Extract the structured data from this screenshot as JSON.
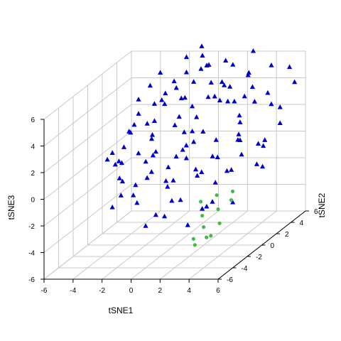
{
  "chart_data": {
    "type": "scatter",
    "projection": "3d-perspective",
    "title": "",
    "xlabel": "tSNE1",
    "ylabel": "tSNE2",
    "zlabel": "tSNE3",
    "x_ticks": [
      "-6",
      "-4",
      "-2",
      "0",
      "2",
      "4",
      "6"
    ],
    "y_ticks": [
      "-6",
      "-4",
      "-2",
      "0",
      "2",
      "4",
      "6"
    ],
    "z_ticks": [
      "-6",
      "-4",
      "-2",
      "0",
      "2",
      "4",
      "6"
    ],
    "xlim": [
      -6,
      6
    ],
    "ylim": [
      -6,
      6
    ],
    "zlim": [
      -6,
      6
    ],
    "grid": true,
    "box": true,
    "series": [
      {
        "marker": "triangle",
        "color": "#0000cd",
        "points": [
          [
            -4.9,
            0.5,
            0.2
          ],
          [
            -4.5,
            0.8,
            -0.3
          ],
          [
            -4.2,
            -0.2,
            1.0
          ],
          [
            -3.8,
            1.5,
            1.8
          ],
          [
            -3.6,
            -0.5,
            0.5
          ],
          [
            -3.5,
            2.0,
            3.0
          ],
          [
            -3.3,
            0.3,
            2.4
          ],
          [
            -3.1,
            -1.0,
            -0.8
          ],
          [
            -3.0,
            1.0,
            4.5
          ],
          [
            -2.9,
            -1.5,
            0.8
          ],
          [
            -2.8,
            2.5,
            1.2
          ],
          [
            -2.7,
            0.0,
            -1.5
          ],
          [
            -2.6,
            1.8,
            5.2
          ],
          [
            -2.5,
            -2.0,
            2.2
          ],
          [
            -2.4,
            3.0,
            3.6
          ],
          [
            -2.3,
            0.6,
            0.0
          ],
          [
            -2.2,
            -0.8,
            -2.5
          ],
          [
            -2.1,
            2.2,
            6.0
          ],
          [
            -2.0,
            1.2,
            2.8
          ],
          [
            -1.9,
            -1.2,
            1.4
          ],
          [
            -1.8,
            3.5,
            4.8
          ],
          [
            -1.7,
            0.2,
            -0.6
          ],
          [
            -1.6,
            -2.5,
            -1.2
          ],
          [
            -1.5,
            1.6,
            3.9
          ],
          [
            -1.4,
            2.8,
            1.8
          ],
          [
            -1.3,
            -0.4,
            0.9
          ],
          [
            -1.2,
            4.0,
            6.4
          ],
          [
            -1.1,
            0.9,
            5.0
          ],
          [
            -1.0,
            -1.8,
            -0.2
          ],
          [
            -0.9,
            2.4,
            2.6
          ],
          [
            -0.8,
            3.2,
            5.6
          ],
          [
            -0.7,
            0.4,
            -1.8
          ],
          [
            -0.6,
            -1.4,
            1.6
          ],
          [
            -0.5,
            1.9,
            4.2
          ],
          [
            -0.4,
            4.5,
            7.0
          ],
          [
            -0.3,
            0.8,
            0.3
          ],
          [
            -0.2,
            -2.2,
            -2.8
          ],
          [
            -0.1,
            2.6,
            3.3
          ],
          [
            0.0,
            3.8,
            6.6
          ],
          [
            0.1,
            1.1,
            2.0
          ],
          [
            0.2,
            -0.6,
            -0.9
          ],
          [
            0.3,
            2.0,
            5.4
          ],
          [
            0.4,
            4.2,
            4.4
          ],
          [
            0.5,
            0.1,
            1.1
          ],
          [
            0.6,
            -1.6,
            -2.0
          ],
          [
            0.7,
            3.0,
            6.2
          ],
          [
            0.8,
            1.4,
            3.0
          ],
          [
            0.9,
            -0.2,
            0.6
          ],
          [
            1.0,
            2.6,
            4.0
          ],
          [
            1.1,
            4.8,
            5.8
          ],
          [
            1.2,
            0.7,
            -1.1
          ],
          [
            1.3,
            -1.0,
            1.9
          ],
          [
            1.4,
            3.4,
            3.4
          ],
          [
            1.5,
            1.7,
            6.8
          ],
          [
            1.6,
            -2.4,
            -1.6
          ],
          [
            1.7,
            0.5,
            2.3
          ],
          [
            1.8,
            2.9,
            5.0
          ],
          [
            1.9,
            4.4,
            2.9
          ],
          [
            2.0,
            -0.3,
            -0.4
          ],
          [
            2.1,
            1.3,
            4.6
          ],
          [
            2.2,
            3.6,
            6.0
          ],
          [
            2.3,
            -1.7,
            0.4
          ],
          [
            2.4,
            0.9,
            1.5
          ],
          [
            2.5,
            2.3,
            3.8
          ],
          [
            2.6,
            5.0,
            4.8
          ],
          [
            2.7,
            0.2,
            -1.4
          ],
          [
            2.8,
            -1.2,
            -2.6
          ],
          [
            2.9,
            3.1,
            2.4
          ],
          [
            3.0,
            1.6,
            5.2
          ],
          [
            3.1,
            4.6,
            6.6
          ],
          [
            3.2,
            -0.5,
            0.8
          ],
          [
            3.3,
            2.1,
            1.0
          ],
          [
            3.4,
            3.9,
            4.2
          ],
          [
            3.5,
            0.8,
            -0.7
          ],
          [
            3.6,
            -2.0,
            -1.9
          ],
          [
            3.7,
            2.7,
            5.6
          ],
          [
            3.8,
            5.2,
            3.2
          ],
          [
            3.9,
            1.2,
            2.7
          ],
          [
            4.0,
            -0.8,
            -0.1
          ],
          [
            4.1,
            3.3,
            0.2
          ],
          [
            4.2,
            4.9,
            5.4
          ],
          [
            4.3,
            0.4,
            1.7
          ],
          [
            4.4,
            2.5,
            -1.0
          ],
          [
            4.5,
            5.5,
            2.0
          ],
          [
            4.6,
            1.8,
            4.0
          ],
          [
            4.7,
            -1.4,
            -2.2
          ],
          [
            4.8,
            3.7,
            3.0
          ],
          [
            4.9,
            6.0,
            4.8
          ],
          [
            5.0,
            2.2,
            0.5
          ],
          [
            5.2,
            4.1,
            1.4
          ],
          [
            5.4,
            5.7,
            3.8
          ],
          [
            5.6,
            0.9,
            -0.5
          ],
          [
            -4.0,
            2.4,
            2.0
          ],
          [
            -3.2,
            3.2,
            0.6
          ],
          [
            -2.4,
            -2.8,
            0.2
          ],
          [
            -1.8,
            -0.2,
            3.2
          ],
          [
            -1.2,
            1.5,
            -0.8
          ],
          [
            -0.6,
            3.6,
            1.0
          ],
          [
            0.2,
            2.2,
            0.8
          ],
          [
            0.8,
            -2.8,
            0.0
          ],
          [
            1.6,
            2.0,
            -0.2
          ],
          [
            2.4,
            4.0,
            0.6
          ],
          [
            3.2,
            2.8,
            -0.4
          ],
          [
            4.0,
            4.4,
            0.0
          ],
          [
            -2.0,
            4.2,
            4.0
          ],
          [
            -0.8,
            5.2,
            5.0
          ],
          [
            0.6,
            5.6,
            3.6
          ],
          [
            1.8,
            6.0,
            2.6
          ],
          [
            -3.4,
            -1.8,
            -2.4
          ],
          [
            -2.2,
            -3.0,
            -1.0
          ],
          [
            -0.4,
            -3.2,
            -3.2
          ],
          [
            1.0,
            -3.4,
            -2.4
          ],
          [
            2.2,
            -2.6,
            -3.4
          ],
          [
            3.4,
            -3.0,
            -2.0
          ],
          [
            -1.4,
            0.0,
            4.6
          ],
          [
            0.4,
            0.6,
            4.8
          ]
        ]
      },
      {
        "marker": "circle",
        "color": "#44bb44",
        "points": [
          [
            3.6,
            -3.6,
            -1.2
          ],
          [
            4.0,
            -4.2,
            -2.0
          ],
          [
            4.4,
            -4.8,
            -2.6
          ],
          [
            4.8,
            -5.2,
            -3.2
          ],
          [
            5.0,
            -4.0,
            -1.6
          ],
          [
            5.4,
            -4.6,
            -2.4
          ],
          [
            5.8,
            -3.8,
            -1.0
          ],
          [
            4.2,
            -5.6,
            -3.6
          ],
          [
            5.2,
            -5.4,
            -3.0
          ],
          [
            3.8,
            -5.0,
            -3.4
          ],
          [
            5.6,
            -3.2,
            -0.6
          ],
          [
            4.6,
            -3.4,
            -0.8
          ]
        ]
      }
    ]
  }
}
